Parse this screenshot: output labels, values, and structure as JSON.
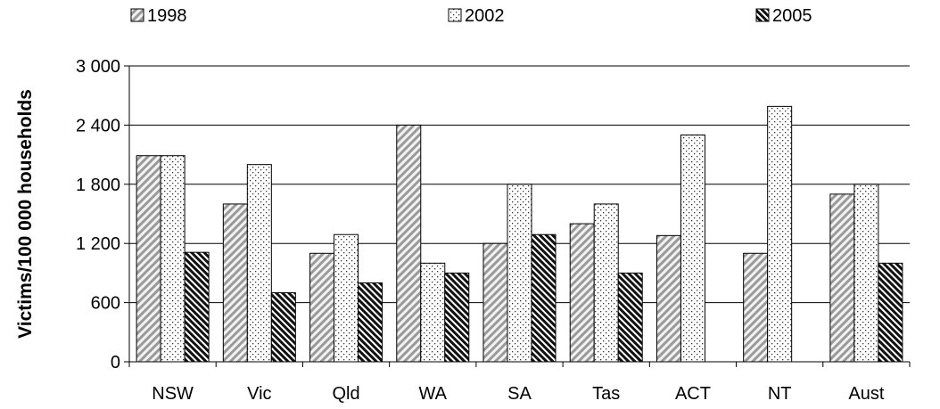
{
  "chart_data": {
    "type": "bar",
    "title": "",
    "xlabel": "",
    "ylabel": "Victims/100 000 households",
    "ylim": [
      0,
      3000
    ],
    "yticks": [
      0,
      600,
      1200,
      1800,
      2400,
      3000
    ],
    "ytick_labels": [
      "0",
      "600",
      "1 200",
      "1 800",
      "2 400",
      "3 000"
    ],
    "grid": "horizontal",
    "legend_position": "top",
    "categories": [
      "NSW",
      "Vic",
      "Qld",
      "WA",
      "SA",
      "Tas",
      "ACT",
      "NT",
      "Aust"
    ],
    "series": [
      {
        "name": "1998",
        "pattern": "diagonal-hatch",
        "values": [
          2090,
          1600,
          1100,
          2400,
          1200,
          1400,
          1280,
          1100,
          1700
        ]
      },
      {
        "name": "2002",
        "pattern": "dots",
        "values": [
          2090,
          2000,
          1290,
          1000,
          1800,
          1600,
          2300,
          2590,
          1800
        ]
      },
      {
        "name": "2005",
        "pattern": "dense-diagonal-hatch",
        "values": [
          1110,
          700,
          800,
          900,
          1290,
          900,
          null,
          null,
          1000
        ]
      }
    ]
  }
}
